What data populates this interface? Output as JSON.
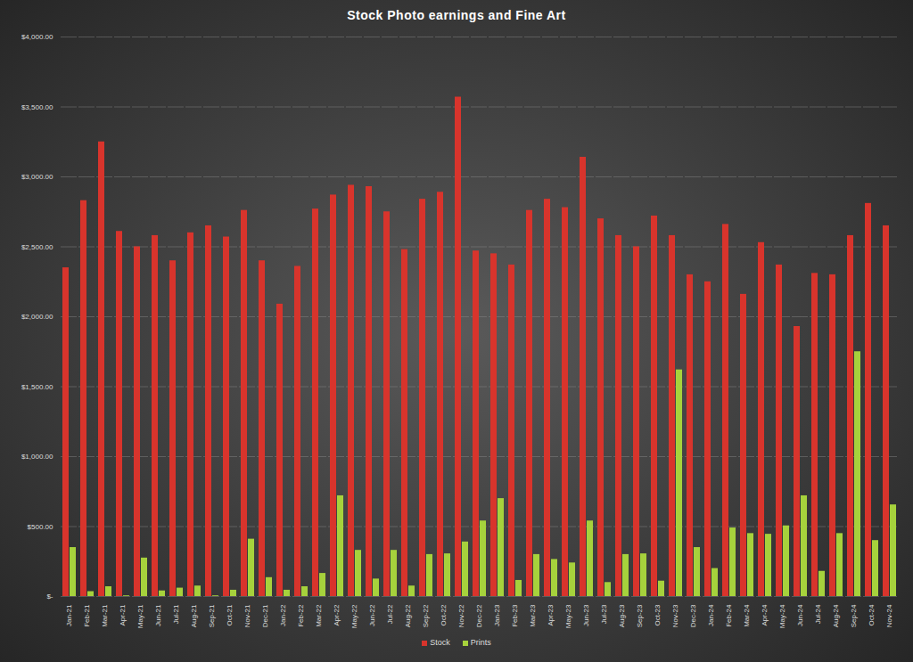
{
  "chart_data": {
    "type": "bar",
    "title": "Stock Photo earnings and Fine Art",
    "categories": [
      "Jan-21",
      "Feb-21",
      "Mar-21",
      "Apr-21",
      "May-21",
      "Jun-21",
      "Jul-21",
      "Aug-21",
      "Sep-21",
      "Oct-21",
      "Nov-21",
      "Dec-21",
      "Jan-22",
      "Feb-22",
      "Mar-22",
      "Apr-22",
      "May-22",
      "Jun-22",
      "Jul-22",
      "Aug-22",
      "Sep-22",
      "Oct-22",
      "Nov-22",
      "Dec-22",
      "Jan-23",
      "Feb-23",
      "Mar-23",
      "Apr-23",
      "May-23",
      "Jun-23",
      "Jul-23",
      "Aug-23",
      "Sep-23",
      "Oct-23",
      "Nov-23",
      "Dec-23",
      "Jan-24",
      "Feb-24",
      "Mar-24",
      "Apr-24",
      "May-24",
      "Jun-24",
      "Jul-24",
      "Aug-24",
      "Sep-24",
      "Oct-24",
      "Nov-24"
    ],
    "series": [
      {
        "name": "Stock",
        "color": "#d8342c",
        "values": [
          2350,
          2830,
          3250,
          2610,
          2500,
          2580,
          2400,
          2600,
          2650,
          2570,
          2760,
          2400,
          2090,
          2360,
          2770,
          2870,
          2940,
          2930,
          2750,
          2480,
          2840,
          2890,
          3570,
          2470,
          2450,
          2370,
          2760,
          2840,
          2780,
          3140,
          2700,
          2580,
          2500,
          2720,
          2580,
          2300,
          2250,
          2660,
          2160,
          2530,
          2370,
          1930,
          2310,
          2300,
          2580,
          2810,
          2650
        ]
      },
      {
        "name": "Prints",
        "color": "#a6d23c",
        "values": [
          350,
          35,
          70,
          5,
          275,
          40,
          60,
          75,
          5,
          45,
          410,
          135,
          45,
          70,
          165,
          720,
          330,
          125,
          330,
          75,
          300,
          305,
          390,
          540,
          700,
          115,
          300,
          265,
          240,
          540,
          100,
          300,
          305,
          110,
          1620,
          350,
          200,
          490,
          450,
          445,
          505,
          720,
          180,
          450,
          1750,
          400,
          655
        ]
      }
    ],
    "ylim": [
      0,
      4000
    ],
    "yticks": [
      {
        "value": 0,
        "label": "$-"
      },
      {
        "value": 500,
        "label": "$500.00"
      },
      {
        "value": 1000,
        "label": "$1,000.00"
      },
      {
        "value": 1500,
        "label": "$1,500.00"
      },
      {
        "value": 2000,
        "label": "$2,000.00"
      },
      {
        "value": 2500,
        "label": "$2,500.00"
      },
      {
        "value": 3000,
        "label": "$3,000.00"
      },
      {
        "value": 3500,
        "label": "$3,500.00"
      },
      {
        "value": 4000,
        "label": "$4,000.00"
      }
    ],
    "grid": true,
    "legend": "bottom"
  }
}
